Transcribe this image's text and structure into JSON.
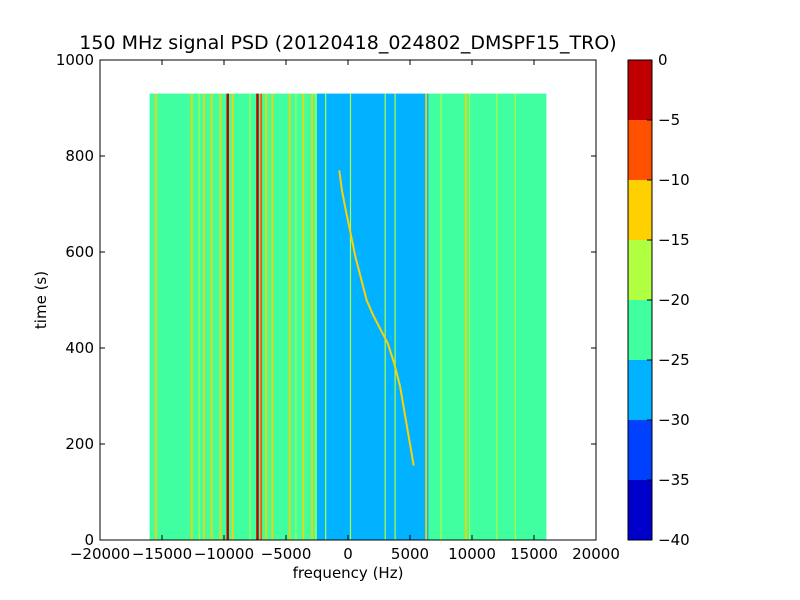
{
  "chart_data": {
    "type": "heatmap",
    "title": "150 MHz signal PSD (20120418_024802_DMSPF15_TRO)",
    "xlabel": "frequency (Hz)",
    "ylabel": "time (s)",
    "xlim": [
      -20000,
      20000
    ],
    "ylim": [
      0,
      1000
    ],
    "xticks": [
      -20000,
      -15000,
      -10000,
      -5000,
      0,
      5000,
      10000,
      15000,
      20000
    ],
    "xtick_labels": [
      "−20000",
      "−15000",
      "−10000",
      "−5000",
      "0",
      "5000",
      "10000",
      "15000",
      "20000"
    ],
    "yticks": [
      0,
      200,
      400,
      600,
      800,
      1000
    ],
    "ytick_labels": [
      "0",
      "200",
      "400",
      "600",
      "800",
      "1000"
    ],
    "data_extent": {
      "freq": [
        -16000,
        16000
      ],
      "time": [
        0,
        930
      ]
    },
    "colorbar": {
      "levels": [
        -40,
        -35,
        -30,
        -25,
        -20,
        -15,
        -10,
        -5,
        0
      ],
      "labels": [
        "−40",
        "−35",
        "−30",
        "−25",
        "−20",
        "−15",
        "−10",
        "−5",
        "0"
      ],
      "colors": [
        "#0000cc",
        "#0040ff",
        "#00b2ff",
        "#40ffa0",
        "#b0ff40",
        "#ffd000",
        "#ff5000",
        "#c00000"
      ]
    },
    "background_regions": [
      {
        "freq": [
          -16000,
          -2500
        ],
        "level_band": 3
      },
      {
        "freq": [
          -2500,
          6500
        ],
        "level_band": 2
      },
      {
        "freq": [
          6500,
          16000
        ],
        "level_band": 3
      }
    ],
    "spectral_lines": [
      {
        "freq": -15500,
        "band": 5
      },
      {
        "freq": -12600,
        "band": 5
      },
      {
        "freq": -12000,
        "band": 4
      },
      {
        "freq": -11600,
        "band": 5
      },
      {
        "freq": -11000,
        "band": 5
      },
      {
        "freq": -10300,
        "band": 5
      },
      {
        "freq": -9700,
        "band": 7
      },
      {
        "freq": -9300,
        "band": 5
      },
      {
        "freq": -7900,
        "band": 4
      },
      {
        "freq": -7300,
        "band": 7
      },
      {
        "freq": -7000,
        "band": 6
      },
      {
        "freq": -6600,
        "band": 5
      },
      {
        "freq": -6100,
        "band": 5
      },
      {
        "freq": -4700,
        "band": 5
      },
      {
        "freq": -4200,
        "band": 4
      },
      {
        "freq": -3600,
        "band": 5
      },
      {
        "freq": -2900,
        "band": 5
      },
      {
        "freq": -2600,
        "band": 4
      },
      {
        "freq": -1800,
        "band": 4
      },
      {
        "freq": 200,
        "band": 4
      },
      {
        "freq": 3000,
        "band": 4
      },
      {
        "freq": 3800,
        "band": 4
      },
      {
        "freq": 6300,
        "band": 5
      },
      {
        "freq": 7500,
        "band": 4
      },
      {
        "freq": 9500,
        "band": 5
      },
      {
        "freq": 9800,
        "band": 4
      },
      {
        "freq": 12000,
        "band": 4
      },
      {
        "freq": 13500,
        "band": 4
      }
    ],
    "doppler_trace": {
      "band": 5,
      "points": [
        [
          -700,
          770
        ],
        [
          -500,
          730
        ],
        [
          -200,
          690
        ],
        [
          200,
          640
        ],
        [
          600,
          590
        ],
        [
          1000,
          550
        ],
        [
          1500,
          500
        ],
        [
          2000,
          470
        ],
        [
          2600,
          440
        ],
        [
          3200,
          410
        ],
        [
          3700,
          370
        ],
        [
          4200,
          320
        ],
        [
          4600,
          260
        ],
        [
          5000,
          200
        ],
        [
          5300,
          155
        ]
      ]
    }
  }
}
